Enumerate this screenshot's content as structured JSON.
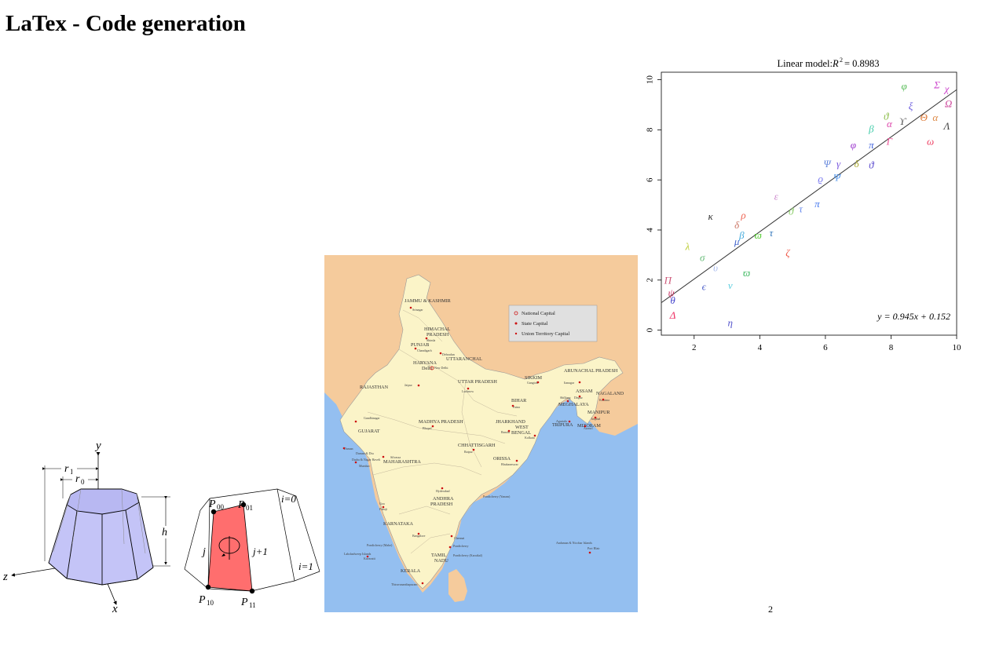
{
  "page": {
    "title": "LaTex - Code generation",
    "page_number": "2"
  },
  "frustum_figure": {
    "labels": {
      "y": "y",
      "x": "x",
      "z": "z",
      "r1": "r",
      "r1_sub": "1",
      "r0": "r",
      "r0_sub": "0",
      "h": "h"
    },
    "face_color": "#c8c8f8"
  },
  "panel_figure": {
    "labels": {
      "p00": "P",
      "p00_sub": "00",
      "p01": "P",
      "p01_sub": "01",
      "p10": "P",
      "p10_sub": "10",
      "p11": "P",
      "p11_sub": "11",
      "i0": "i=0",
      "i1": "i=1",
      "j": "j",
      "j1": "j+1"
    },
    "highlight_color": "#ff7070"
  },
  "india_map": {
    "legend": {
      "national": "National Capital",
      "state": "State Capital",
      "union": "Union Territory Capital"
    },
    "colors": {
      "land": "#fbf4c8",
      "neighbors": "#f5cb9c",
      "sea": "#94bff0",
      "capital_dot": "#cc1111"
    },
    "states": [
      "JAMMU & KASHMIR",
      "HIMACHAL",
      "PRADESH",
      "PUNJAB",
      "UTTARANCHAL",
      "HARYANA",
      "Delhi",
      "UTTAR PRADESH",
      "RAJASTHAN",
      "SIKKIM",
      "ARUNACHAL PRADESH",
      "ASSAM",
      "NAGALAND",
      "BIHAR",
      "MEGHALAYA",
      "MANIPUR",
      "GUJARAT",
      "MADHYA PRADESH",
      "JHARKHAND",
      "WEST",
      "BENGAL",
      "TRIPURA",
      "MIZORAM",
      "CHHATTISGARH",
      "Daman & Diu",
      "Dadra & Nagar Haveli",
      "MAHARASHTRA",
      "ORISSA",
      "Goa",
      "ANDHRA",
      "PRADESH",
      "Pondicherry (Yanam)",
      "KARNATAKA",
      "Pondicherry (Mahe)",
      "Lakshadweep Islands",
      "TAMIL",
      "NADU",
      "Pondicherry",
      "Pondicherry (Karaikal)",
      "KERALA",
      "Andaman & Nicobar Islands"
    ],
    "cities": [
      "Srinagar",
      "Shimla",
      "Chandigarh",
      "Dehradun",
      "New Delhi",
      "Jaipur",
      "Lucknow",
      "Patna",
      "Gangtok",
      "Itanagar",
      "Dispur",
      "Kohima",
      "Shillong",
      "Imphal",
      "Gandhinagar",
      "Bhopal",
      "Ranchi",
      "Kolkata",
      "Agartala",
      "Aizawl",
      "Raipur",
      "Bhubaneswar",
      "Mumbai",
      "Panaji",
      "Hyderabad",
      "Bangalore",
      "Chennai",
      "Kavaratti",
      "Thiruvananthapuram",
      "Port Blair",
      "Silvassa",
      "Daman"
    ]
  },
  "chart_data": {
    "type": "scatter",
    "title": "Linear model: ",
    "title_math": "R",
    "title_sup": "2",
    "title_value": "= 0.8983",
    "xlabel": "",
    "ylabel": "",
    "xlim": [
      1,
      10
    ],
    "ylim": [
      -0.2,
      10.3
    ],
    "xticks": [
      "2",
      "4",
      "6",
      "8",
      "10"
    ],
    "yticks": [
      "0",
      "2",
      "4",
      "6",
      "8",
      "10"
    ],
    "regression": {
      "slope": 0.945,
      "intercept": 0.152,
      "label": "y = 0.945x + 0.152",
      "color": "#333333"
    },
    "points": [
      {
        "label": "φ",
        "x": 8.4,
        "y": 9.7,
        "color": "#55bb55"
      },
      {
        "label": "Σ",
        "x": 9.4,
        "y": 9.75,
        "color": "#cc44cc"
      },
      {
        "label": "χ",
        "x": 9.7,
        "y": 9.6,
        "color": "#cc44cc"
      },
      {
        "label": "ξ",
        "x": 8.6,
        "y": 8.9,
        "color": "#6655dd"
      },
      {
        "label": "Ω",
        "x": 9.75,
        "y": 9.0,
        "color": "#cc4499"
      },
      {
        "label": "ϑ",
        "x": 7.85,
        "y": 8.5,
        "color": "#88bb44"
      },
      {
        "label": "α",
        "x": 7.95,
        "y": 8.2,
        "color": "#dd44aa"
      },
      {
        "label": "ϒ",
        "x": 8.35,
        "y": 8.3,
        "color": "#555555"
      },
      {
        "label": "Θ",
        "x": 9.0,
        "y": 8.45,
        "color": "#dd7733"
      },
      {
        "label": "α",
        "x": 9.35,
        "y": 8.45,
        "color": "#dd8844"
      },
      {
        "label": "Λ",
        "x": 9.7,
        "y": 8.1,
        "color": "#444444"
      },
      {
        "label": "β",
        "x": 7.4,
        "y": 8.0,
        "color": "#44ccaa"
      },
      {
        "label": "φ",
        "x": 6.85,
        "y": 7.35,
        "color": "#9933cc"
      },
      {
        "label": "π",
        "x": 7.4,
        "y": 7.35,
        "color": "#4466dd"
      },
      {
        "label": "Γ",
        "x": 7.95,
        "y": 7.5,
        "color": "#ee5599"
      },
      {
        "label": "ω",
        "x": 9.2,
        "y": 7.5,
        "color": "#ee4466"
      },
      {
        "label": "Ψ",
        "x": 6.05,
        "y": 6.6,
        "color": "#6688dd"
      },
      {
        "label": "γ",
        "x": 6.4,
        "y": 6.6,
        "color": "#7755dd"
      },
      {
        "label": "δ",
        "x": 6.95,
        "y": 6.6,
        "color": "#aaaa33"
      },
      {
        "label": "ϑ",
        "x": 7.4,
        "y": 6.55,
        "color": "#5544cc"
      },
      {
        "label": "ϱ",
        "x": 5.85,
        "y": 6.0,
        "color": "#7777ee"
      },
      {
        "label": "Ψ",
        "x": 6.35,
        "y": 6.05,
        "color": "#5599ee"
      },
      {
        "label": "ε",
        "x": 4.5,
        "y": 5.3,
        "color": "#cc88cc"
      },
      {
        "label": "π",
        "x": 5.75,
        "y": 5.0,
        "color": "#4477ee"
      },
      {
        "label": "ϑ",
        "x": 4.95,
        "y": 4.7,
        "color": "#88cc66"
      },
      {
        "label": "τ",
        "x": 5.25,
        "y": 4.8,
        "color": "#6688ee"
      },
      {
        "label": "κ",
        "x": 2.5,
        "y": 4.5,
        "color": "#333333"
      },
      {
        "label": "ρ",
        "x": 3.5,
        "y": 4.55,
        "color": "#ee6655"
      },
      {
        "label": "δ",
        "x": 3.3,
        "y": 4.15,
        "color": "#cc7766"
      },
      {
        "label": "β",
        "x": 3.45,
        "y": 3.75,
        "color": "#44aadd"
      },
      {
        "label": "ϖ",
        "x": 3.95,
        "y": 3.75,
        "color": "#55cc33"
      },
      {
        "label": "τ",
        "x": 4.35,
        "y": 3.85,
        "color": "#3377bb"
      },
      {
        "label": "μ",
        "x": 3.3,
        "y": 3.5,
        "color": "#4466cc"
      },
      {
        "label": "λ",
        "x": 1.8,
        "y": 3.3,
        "color": "#bbcc33"
      },
      {
        "label": "ζ",
        "x": 4.85,
        "y": 3.05,
        "color": "#ee5544"
      },
      {
        "label": "σ",
        "x": 2.25,
        "y": 2.85,
        "color": "#66bb77"
      },
      {
        "label": "υ",
        "x": 2.65,
        "y": 2.45,
        "color": "#aabbee"
      },
      {
        "label": "ϖ",
        "x": 3.6,
        "y": 2.25,
        "color": "#44bb66"
      },
      {
        "label": "Π",
        "x": 1.2,
        "y": 1.95,
        "color": "#cc5577"
      },
      {
        "label": "ϵ",
        "x": 2.3,
        "y": 1.7,
        "color": "#5566cc"
      },
      {
        "label": "ν",
        "x": 3.1,
        "y": 1.75,
        "color": "#55ccdd"
      },
      {
        "label": "ψ",
        "x": 1.3,
        "y": 1.45,
        "color": "#cc3366"
      },
      {
        "label": "θ",
        "x": 1.35,
        "y": 1.15,
        "color": "#4444cc"
      },
      {
        "label": "Δ",
        "x": 1.35,
        "y": 0.55,
        "color": "#ee3366"
      },
      {
        "label": "η",
        "x": 3.1,
        "y": 0.25,
        "color": "#5555cc"
      }
    ]
  }
}
